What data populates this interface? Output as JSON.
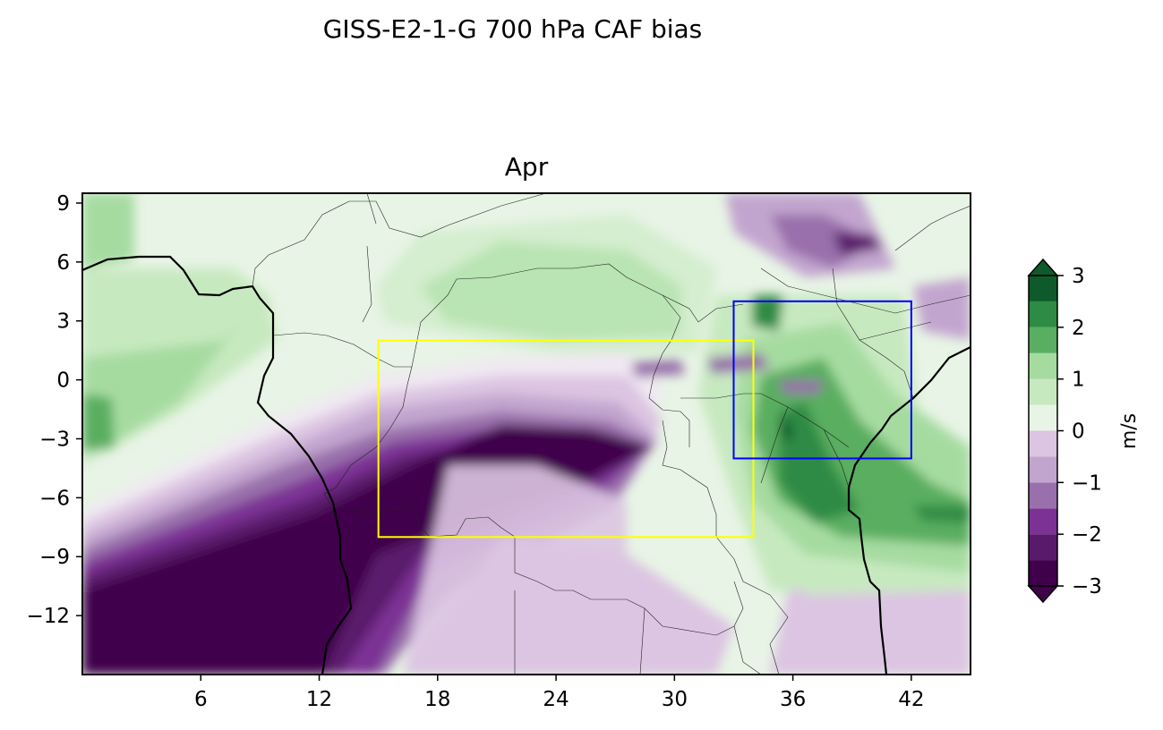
{
  "title": "GISS-E2-1-G 700 hPa CAF bias",
  "panel_title": "Apr",
  "map": {
    "lon_range": [
      0,
      45
    ],
    "lat_range": [
      -15,
      9.5
    ],
    "x_ticks": [
      6,
      12,
      18,
      24,
      30,
      36,
      42
    ],
    "y_ticks": [
      9,
      6,
      3,
      0,
      -3,
      -6,
      -9,
      -12
    ],
    "x_tick_labels": [
      "6",
      "12",
      "18",
      "24",
      "30",
      "36",
      "42"
    ],
    "y_tick_labels": [
      "9",
      "6",
      "3",
      "0",
      "−3",
      "−6",
      "−9",
      "−12"
    ],
    "regions": [
      {
        "color": "#ffff00",
        "lon": [
          15,
          34
        ],
        "lat": [
          -8,
          2
        ]
      },
      {
        "color": "#0000ff",
        "lon": [
          33,
          42
        ],
        "lat": [
          -4,
          4
        ]
      }
    ]
  },
  "colorbar": {
    "label": "m/s",
    "levels": [
      -3,
      -2.5,
      -2,
      -1.5,
      -1,
      -0.5,
      0,
      0.5,
      1,
      1.5,
      2,
      2.5,
      3
    ],
    "tick_values": [
      3,
      2,
      1,
      0,
      -1,
      -2,
      -3
    ],
    "tick_labels": [
      "3",
      "2",
      "1",
      "0",
      "−1",
      "−2",
      "−3"
    ],
    "colors": [
      "#40004b",
      "#5a1a6c",
      "#7b3294",
      "#9970ab",
      "#c2a5cf",
      "#dcc5e2",
      "#f0e8f2",
      "#e8f4e6",
      "#c7e9c0",
      "#a6dba0",
      "#5aae61",
      "#2e8b45",
      "#0f5a2a"
    ],
    "extend": "both"
  }
}
